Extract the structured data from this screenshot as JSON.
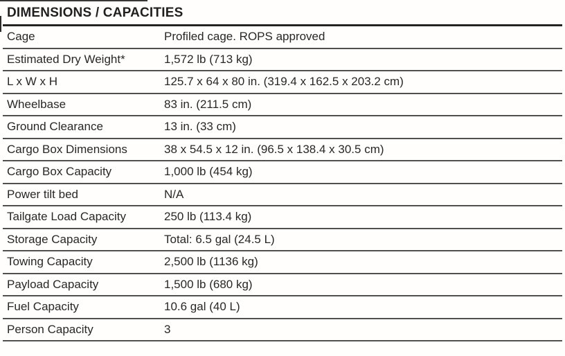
{
  "header": {
    "title": "DIMENSIONS / CAPACITIES"
  },
  "table": {
    "columns": [
      "spec",
      "value"
    ],
    "rows": [
      {
        "label": "Cage",
        "value": "Profiled cage. ROPS approved"
      },
      {
        "label": "Estimated Dry Weight*",
        "value": "1,572 lb (713 kg)"
      },
      {
        "label": "L x W x H",
        "value": "125.7 x 64 x 80 in. (319.4 x 162.5 x 203.2 cm)"
      },
      {
        "label": "Wheelbase",
        "value": "83 in. (211.5 cm)"
      },
      {
        "label": "Ground Clearance",
        "value": "13 in. (33 cm)"
      },
      {
        "label": "Cargo Box Dimensions",
        "value": "38 x 54.5 x 12 in. (96.5 x 138.4 x 30.5 cm)"
      },
      {
        "label": "Cargo Box Capacity",
        "value": "1,000 lb (454 kg)"
      },
      {
        "label": "Power tilt bed",
        "value": "N/A"
      },
      {
        "label": "Tailgate Load Capacity",
        "value": "250 lb (113.4 kg)"
      },
      {
        "label": "Storage Capacity",
        "value": "Total: 6.5 gal (24.5 L)"
      },
      {
        "label": "Towing Capacity",
        "value": "2,500 lb (1136 kg)"
      },
      {
        "label": "Payload Capacity",
        "value": "1,500 lb (680 kg)"
      },
      {
        "label": "Fuel Capacity",
        "value": "10.6 gal (40 L)"
      },
      {
        "label": "Person Capacity",
        "value": "3"
      }
    ]
  },
  "colors": {
    "text": "#2a2627",
    "heavy_rule": "#262324",
    "row_rule": "#514e4f",
    "background": "#ffffff"
  }
}
